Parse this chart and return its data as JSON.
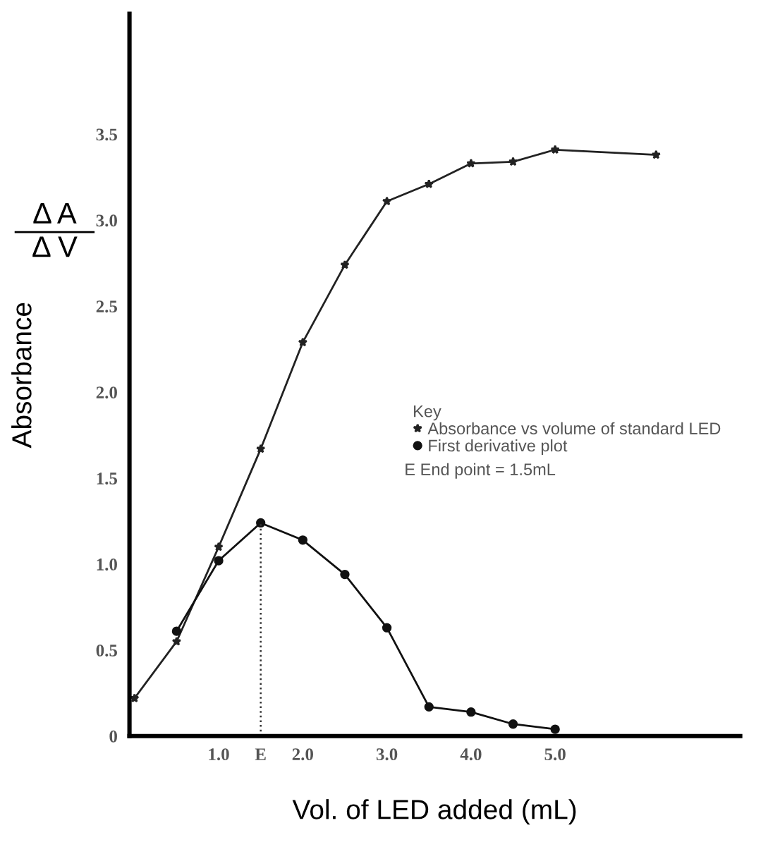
{
  "chart_data": {
    "type": "line",
    "xlabel": "Vol. of LED added (mL)",
    "ylabel": "Absorbance",
    "legend_title": "Key",
    "legend": "right",
    "annotations": [
      "Δ A",
      "Δ V",
      "E End point = 1.5mL"
    ],
    "series": [
      {
        "name": "Absorbance vs volume of standard LED",
        "color": "#222222",
        "marker": "star",
        "x": [
          0,
          0.5,
          1.0,
          1.5,
          2.0,
          2.5,
          3.0,
          3.5,
          4.0,
          4.5,
          5.0,
          6.2
        ],
        "values": [
          0.22,
          0.55,
          1.1,
          1.67,
          2.29,
          2.74,
          3.11,
          3.21,
          3.33,
          3.34,
          3.41,
          3.38
        ]
      },
      {
        "name": "First derivative plot",
        "color": "#111111",
        "marker": "circle",
        "x": [
          0.5,
          1.0,
          1.5,
          2.0,
          2.5,
          3.0,
          3.5,
          4.0,
          4.5,
          5.0
        ],
        "values": [
          0.61,
          1.02,
          1.24,
          1.14,
          0.94,
          0.63,
          0.17,
          0.14,
          0.07,
          0.04
        ]
      }
    ],
    "ref_lines": [
      {
        "axis": "x",
        "value": 1.5,
        "color": "#333333",
        "line_style": "dotted"
      }
    ],
    "xlim": [
      -0.06,
      7.2
    ],
    "ylim": [
      0,
      4.2
    ],
    "xticks": [
      {
        "value": 1,
        "label": "1.0"
      },
      {
        "value": 1.5,
        "label": "E"
      },
      {
        "value": 2,
        "label": "2.0"
      },
      {
        "value": 3,
        "label": "3.0"
      },
      {
        "value": 4,
        "label": "4.0"
      },
      {
        "value": 5,
        "label": "5.0"
      }
    ],
    "yticks": [
      0,
      0.5,
      {
        "value": 1,
        "label": "1.0"
      },
      1.5,
      {
        "value": 2,
        "label": "2.0"
      },
      2.5,
      {
        "value": 3,
        "label": "3.0"
      },
      3.5
    ],
    "grid": false
  }
}
